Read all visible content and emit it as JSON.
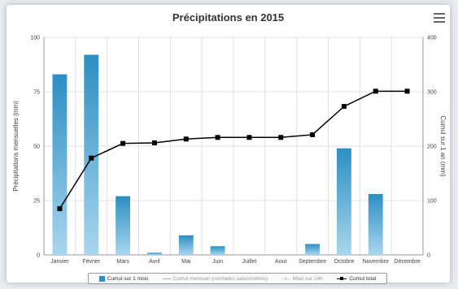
{
  "chart_data": {
    "type": "bar",
    "title": "Précipitations en 2015",
    "categories": [
      "Janvier",
      "Février",
      "Mars",
      "Avril",
      "Mai",
      "Juin",
      "Juillet",
      "Aout",
      "Septembre",
      "Octobre",
      "Novembre",
      "Décembre"
    ],
    "series": [
      {
        "name": "Cumul sur 1 mois",
        "type": "bar",
        "axis": "left",
        "color": "#2b8fc3",
        "values": [
          83,
          92,
          27,
          1,
          9,
          4,
          0,
          0,
          5,
          49,
          28,
          0
        ]
      },
      {
        "name": "Cumul total",
        "type": "line",
        "axis": "right",
        "color": "#000000",
        "values": [
          85,
          178,
          205,
          206,
          213,
          216,
          216,
          216,
          221,
          273,
          301,
          301
        ]
      }
    ],
    "left_axis": {
      "label": "Précipitations mensuelles (mm)",
      "range": [
        0,
        100
      ],
      "ticks": [
        "0",
        "25",
        "50",
        "75",
        "100"
      ]
    },
    "right_axis": {
      "label": "Cumul sur 1 an (mm)",
      "range": [
        0,
        400
      ],
      "ticks": [
        "0",
        "100",
        "200",
        "300",
        "400"
      ]
    },
    "grid": true,
    "legend": {
      "placement": "bottom",
      "items": [
        {
          "label": "Cumul sur 1 mois",
          "enabled": true
        },
        {
          "label": "Cumul mensuel (normales saisonnières)",
          "enabled": false
        },
        {
          "label": "Maxi sur 24h",
          "enabled": false
        },
        {
          "label": "Cumul total",
          "enabled": true
        }
      ]
    }
  }
}
